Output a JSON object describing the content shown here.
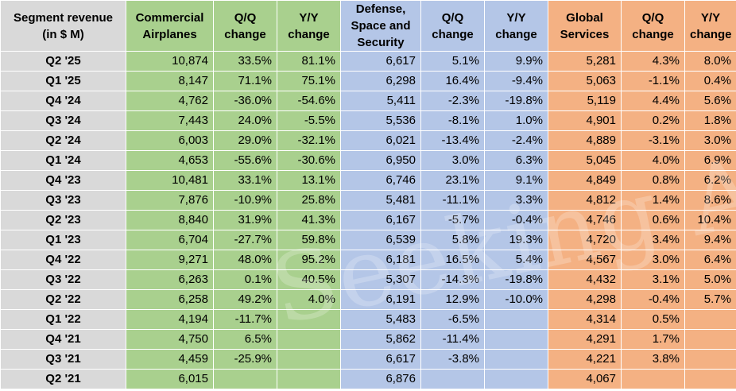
{
  "headers": {
    "label": "Segment revenue (in $ M)",
    "ca": "Commercial Airplanes",
    "ca_qq": "Q/Q change",
    "ca_yy": "Y/Y change",
    "ds": "Defense, Space and Security",
    "ds_qq": "Q/Q change",
    "ds_yy": "Y/Y change",
    "gs": "Global Services",
    "gs_qq": "Q/Q change",
    "gs_yy": "Y/Y change"
  },
  "rows": [
    [
      "Q2 '25",
      "10,874",
      "33.5%",
      "81.1%",
      "6,617",
      "5.1%",
      "9.9%",
      "5,281",
      "4.3%",
      "8.0%"
    ],
    [
      "Q1 '25",
      "8,147",
      "71.1%",
      "75.1%",
      "6,298",
      "16.4%",
      "-9.4%",
      "5,063",
      "-1.1%",
      "0.4%"
    ],
    [
      "Q4 '24",
      "4,762",
      "-36.0%",
      "-54.6%",
      "5,411",
      "-2.3%",
      "-19.8%",
      "5,119",
      "4.4%",
      "5.6%"
    ],
    [
      "Q3 '24",
      "7,443",
      "24.0%",
      "-5.5%",
      "5,536",
      "-8.1%",
      "1.0%",
      "4,901",
      "0.2%",
      "1.8%"
    ],
    [
      "Q2 '24",
      "6,003",
      "29.0%",
      "-32.1%",
      "6,021",
      "-13.4%",
      "-2.4%",
      "4,889",
      "-3.1%",
      "3.0%"
    ],
    [
      "Q1 '24",
      "4,653",
      "-55.6%",
      "-30.6%",
      "6,950",
      "3.0%",
      "6.3%",
      "5,045",
      "4.0%",
      "6.9%"
    ],
    [
      "Q4 '23",
      "10,481",
      "33.1%",
      "13.1%",
      "6,746",
      "23.1%",
      "9.1%",
      "4,849",
      "0.8%",
      "6.2%"
    ],
    [
      "Q3 '23",
      "7,876",
      "-10.9%",
      "25.8%",
      "5,481",
      "-11.1%",
      "3.3%",
      "4,812",
      "1.4%",
      "8.6%"
    ],
    [
      "Q2 '23",
      "8,840",
      "31.9%",
      "41.3%",
      "6,167",
      "-5.7%",
      "-0.4%",
      "4,746",
      "0.6%",
      "10.4%"
    ],
    [
      "Q1 '23",
      "6,704",
      "-27.7%",
      "59.8%",
      "6,539",
      "5.8%",
      "19.3%",
      "4,720",
      "3.4%",
      "9.4%"
    ],
    [
      "Q4 '22",
      "9,271",
      "48.0%",
      "95.2%",
      "6,181",
      "16.5%",
      "5.4%",
      "4,567",
      "3.0%",
      "6.4%"
    ],
    [
      "Q3 '22",
      "6,263",
      "0.1%",
      "40.5%",
      "5,307",
      "-14.3%",
      "-19.8%",
      "4,432",
      "3.1%",
      "5.0%"
    ],
    [
      "Q2 '22",
      "6,258",
      "49.2%",
      "4.0%",
      "6,191",
      "12.9%",
      "-10.0%",
      "4,298",
      "-0.4%",
      "5.7%"
    ],
    [
      "Q1 '22",
      "4,194",
      "-11.7%",
      "",
      "5,483",
      "-6.5%",
      "",
      "4,314",
      "0.5%",
      ""
    ],
    [
      "Q4 '21",
      "4,750",
      "6.5%",
      "",
      "5,862",
      "-11.4%",
      "",
      "4,291",
      "1.7%",
      ""
    ],
    [
      "Q3 '21",
      "4,459",
      "-25.9%",
      "",
      "6,617",
      "-3.8%",
      "",
      "4,221",
      "3.8%",
      ""
    ],
    [
      "Q2 '21",
      "6,015",
      "",
      "",
      "6,876",
      "",
      "",
      "4,067",
      "",
      ""
    ]
  ],
  "watermark": "Seeking Alpha",
  "colors": {
    "label_col": "#d9d9d9",
    "commercial_airplanes": "#a9d08e",
    "defense_space_security": "#b4c6e7",
    "global_services": "#f4b183"
  }
}
